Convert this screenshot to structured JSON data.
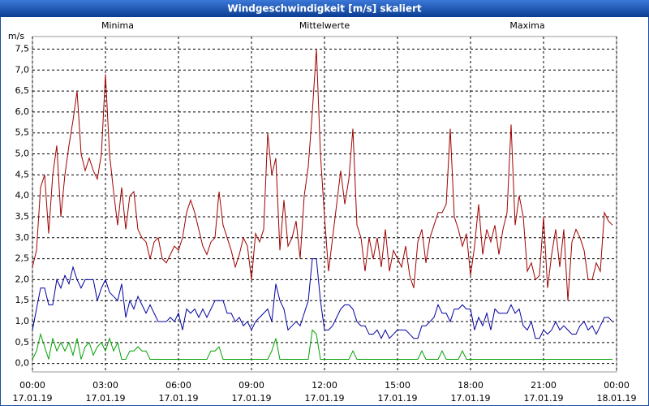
{
  "chart_data": {
    "type": "line",
    "title": "Windgeschwindigkeit [m/s] skaliert",
    "y_label": "m/s",
    "x": [
      0,
      10,
      20,
      30,
      40,
      50,
      60,
      70,
      80,
      90,
      100,
      110,
      120,
      130,
      140,
      150,
      160,
      170,
      180,
      190,
      200,
      210,
      220,
      230,
      240,
      250,
      260,
      270,
      280,
      290,
      300,
      310,
      320,
      330,
      340,
      350,
      360,
      370,
      380,
      390,
      400,
      410,
      420,
      430,
      440,
      450,
      460,
      470,
      480,
      490,
      500,
      510,
      520,
      530,
      540,
      550,
      560,
      570,
      580,
      590,
      600,
      610,
      620,
      630,
      640,
      650,
      660,
      670,
      680,
      690,
      700,
      710,
      720,
      730,
      740,
      750,
      760,
      770,
      780,
      790,
      800,
      810,
      820,
      830,
      840,
      850,
      860,
      870,
      880,
      890,
      900,
      910,
      920,
      930,
      940,
      950,
      960,
      970,
      980,
      990,
      1000,
      1010,
      1020,
      1030,
      1040,
      1050,
      1060,
      1070,
      1080,
      1090,
      1100,
      1110,
      1120,
      1130,
      1140,
      1150,
      1160,
      1170,
      1180,
      1190,
      1200,
      1210,
      1220,
      1230,
      1240,
      1250,
      1260,
      1270,
      1280,
      1290,
      1300,
      1310,
      1320,
      1330,
      1340,
      1350,
      1360,
      1370,
      1380,
      1390,
      1400,
      1410,
      1420,
      1430
    ],
    "series": [
      {
        "name": "Minima",
        "color": "#00a000",
        "values": [
          0.1,
          0.3,
          0.7,
          0.4,
          0.1,
          0.6,
          0.3,
          0.5,
          0.3,
          0.5,
          0.2,
          0.6,
          0.1,
          0.4,
          0.5,
          0.2,
          0.4,
          0.5,
          0.3,
          0.6,
          0.3,
          0.5,
          0.1,
          0.1,
          0.3,
          0.3,
          0.4,
          0.3,
          0.3,
          0.1,
          0.1,
          0.1,
          0.1,
          0.1,
          0.1,
          0.1,
          0.1,
          0.1,
          0.1,
          0.1,
          0.1,
          0.1,
          0.1,
          0.1,
          0.3,
          0.3,
          0.4,
          0.1,
          0.1,
          0.1,
          0.1,
          0.1,
          0.1,
          0.1,
          0.1,
          0.1,
          0.1,
          0.1,
          0.1,
          0.3,
          0.6,
          0.1,
          0.1,
          0.1,
          0.1,
          0.1,
          0.1,
          0.1,
          0.1,
          0.8,
          0.7,
          0.1,
          0.1,
          0.1,
          0.1,
          0.1,
          0.1,
          0.1,
          0.1,
          0.3,
          0.1,
          0.1,
          0.1,
          0.1,
          0.1,
          0.1,
          0.1,
          0.1,
          0.1,
          0.1,
          0.1,
          0.1,
          0.1,
          0.1,
          0.1,
          0.1,
          0.3,
          0.1,
          0.1,
          0.1,
          0.1,
          0.3,
          0.1,
          0.1,
          0.1,
          0.1,
          0.3,
          0.1,
          0.1,
          0.1,
          0.1,
          0.1,
          0.1,
          0.1,
          0.1,
          0.1,
          0.1,
          0.1,
          0.1,
          0.1,
          0.1,
          0.1,
          0.1,
          0.1,
          0.1,
          0.1,
          0.1,
          0.1,
          0.1,
          0.1,
          0.1,
          0.1,
          0.1,
          0.1,
          0.1,
          0.1,
          0.1,
          0.1,
          0.1,
          0.1,
          0.1,
          0.1,
          0.1,
          0.1
        ]
      },
      {
        "name": "Mittelwerte",
        "color": "#0000a0",
        "values": [
          0.8,
          1.3,
          1.8,
          1.8,
          1.4,
          1.4,
          2.0,
          1.8,
          2.1,
          1.9,
          2.3,
          2.0,
          1.8,
          2.0,
          2.0,
          2.0,
          1.5,
          1.8,
          2.0,
          1.7,
          1.6,
          1.5,
          1.9,
          1.1,
          1.5,
          1.3,
          1.6,
          1.4,
          1.2,
          1.4,
          1.2,
          1.0,
          1.0,
          1.0,
          1.1,
          1.0,
          1.2,
          0.8,
          1.3,
          1.2,
          1.3,
          1.1,
          1.3,
          1.1,
          1.3,
          1.5,
          1.5,
          1.5,
          1.2,
          1.2,
          1.0,
          1.1,
          0.9,
          1.0,
          0.8,
          1.0,
          1.1,
          1.2,
          1.3,
          1.0,
          1.9,
          1.5,
          1.3,
          0.8,
          0.9,
          1.0,
          0.9,
          1.2,
          1.5,
          2.5,
          2.5,
          1.5,
          0.8,
          0.8,
          0.9,
          1.1,
          1.3,
          1.4,
          1.4,
          1.3,
          1.0,
          0.9,
          0.9,
          0.7,
          0.7,
          0.8,
          0.6,
          0.8,
          0.6,
          0.7,
          0.8,
          0.8,
          0.8,
          0.7,
          0.6,
          0.6,
          0.9,
          0.9,
          1.0,
          1.1,
          1.4,
          1.2,
          1.2,
          1.0,
          1.3,
          1.3,
          1.4,
          1.3,
          1.3,
          0.8,
          1.1,
          0.9,
          1.2,
          0.8,
          1.3,
          1.2,
          1.2,
          1.2,
          1.4,
          1.2,
          1.3,
          0.9,
          0.8,
          1.0,
          0.6,
          0.6,
          0.8,
          0.7,
          0.8,
          1.0,
          0.8,
          0.9,
          0.8,
          0.7,
          0.7,
          0.9,
          1.0,
          0.8,
          0.9,
          0.7,
          0.9,
          1.1,
          1.1,
          1.0
        ]
      },
      {
        "name": "Maxima",
        "color": "#a00000",
        "values": [
          2.3,
          2.7,
          4.2,
          4.5,
          3.1,
          4.5,
          5.2,
          3.5,
          4.5,
          5.2,
          5.8,
          6.5,
          5.0,
          4.6,
          4.9,
          4.6,
          4.4,
          5.0,
          6.9,
          5.0,
          4.1,
          3.3,
          4.2,
          3.2,
          4.0,
          4.1,
          3.2,
          3.0,
          2.9,
          2.5,
          2.9,
          3.0,
          2.5,
          2.4,
          2.6,
          2.8,
          2.7,
          3.0,
          3.6,
          3.9,
          3.6,
          3.2,
          2.8,
          2.6,
          2.9,
          3.0,
          4.1,
          3.3,
          3.0,
          2.7,
          2.3,
          2.6,
          3.0,
          2.8,
          2.0,
          3.1,
          2.9,
          3.2,
          5.5,
          4.5,
          4.9,
          2.7,
          3.9,
          2.8,
          3.0,
          3.4,
          2.5,
          4.0,
          4.7,
          6.0,
          7.5,
          5.0,
          3.5,
          2.2,
          3.0,
          3.8,
          4.6,
          3.8,
          4.4,
          5.6,
          3.3,
          3.0,
          2.2,
          3.0,
          2.5,
          3.0,
          2.3,
          3.2,
          2.2,
          2.7,
          2.5,
          2.3,
          2.8,
          2.1,
          1.8,
          2.9,
          3.2,
          2.4,
          3.0,
          3.3,
          3.6,
          3.6,
          3.8,
          5.6,
          3.5,
          3.2,
          2.8,
          3.1,
          2.1,
          2.8,
          3.8,
          2.6,
          3.2,
          2.9,
          3.3,
          2.6,
          3.2,
          3.6,
          5.7,
          3.3,
          4.0,
          3.5,
          2.2,
          2.4,
          2.0,
          2.1,
          3.5,
          1.8,
          2.6,
          3.2,
          2.3,
          3.2,
          1.5,
          2.9,
          3.2,
          3.0,
          2.7,
          2.0,
          2.0,
          2.4,
          2.2,
          3.6,
          3.4,
          3.3
        ]
      }
    ],
    "xlim": [
      0,
      1440
    ],
    "xticks": [
      {
        "value": 0,
        "label": "00:00",
        "date": "17.01.19"
      },
      {
        "value": 180,
        "label": "03:00",
        "date": "17.01.19"
      },
      {
        "value": 360,
        "label": "06:00",
        "date": "17.01.19"
      },
      {
        "value": 540,
        "label": "09:00",
        "date": "17.01.19"
      },
      {
        "value": 720,
        "label": "12:00",
        "date": "17.01.19"
      },
      {
        "value": 900,
        "label": "15:00",
        "date": "17.01.19"
      },
      {
        "value": 1080,
        "label": "18:00",
        "date": "17.01.19"
      },
      {
        "value": 1260,
        "label": "21:00",
        "date": "17.01.19"
      },
      {
        "value": 1440,
        "label": "00:00",
        "date": "18.01.19"
      }
    ],
    "ylim": [
      -0.2,
      7.8
    ],
    "yticks": [
      {
        "value": 0,
        "label": "0,0"
      },
      {
        "value": 0.5,
        "label": "0,5"
      },
      {
        "value": 1,
        "label": "1,0"
      },
      {
        "value": 1.5,
        "label": "1,5"
      },
      {
        "value": 2,
        "label": "2,0"
      },
      {
        "value": 2.5,
        "label": "2,5"
      },
      {
        "value": 3,
        "label": "3,0"
      },
      {
        "value": 3.5,
        "label": "3,5"
      },
      {
        "value": 4,
        "label": "4,0"
      },
      {
        "value": 4.5,
        "label": "4,5"
      },
      {
        "value": 5,
        "label": "5,0"
      },
      {
        "value": 5.5,
        "label": "5,5"
      },
      {
        "value": 6,
        "label": "6,0"
      },
      {
        "value": 6.5,
        "label": "6,5"
      },
      {
        "value": 7,
        "label": "7,0"
      },
      {
        "value": 7.5,
        "label": "7,5"
      }
    ],
    "grid": true
  }
}
